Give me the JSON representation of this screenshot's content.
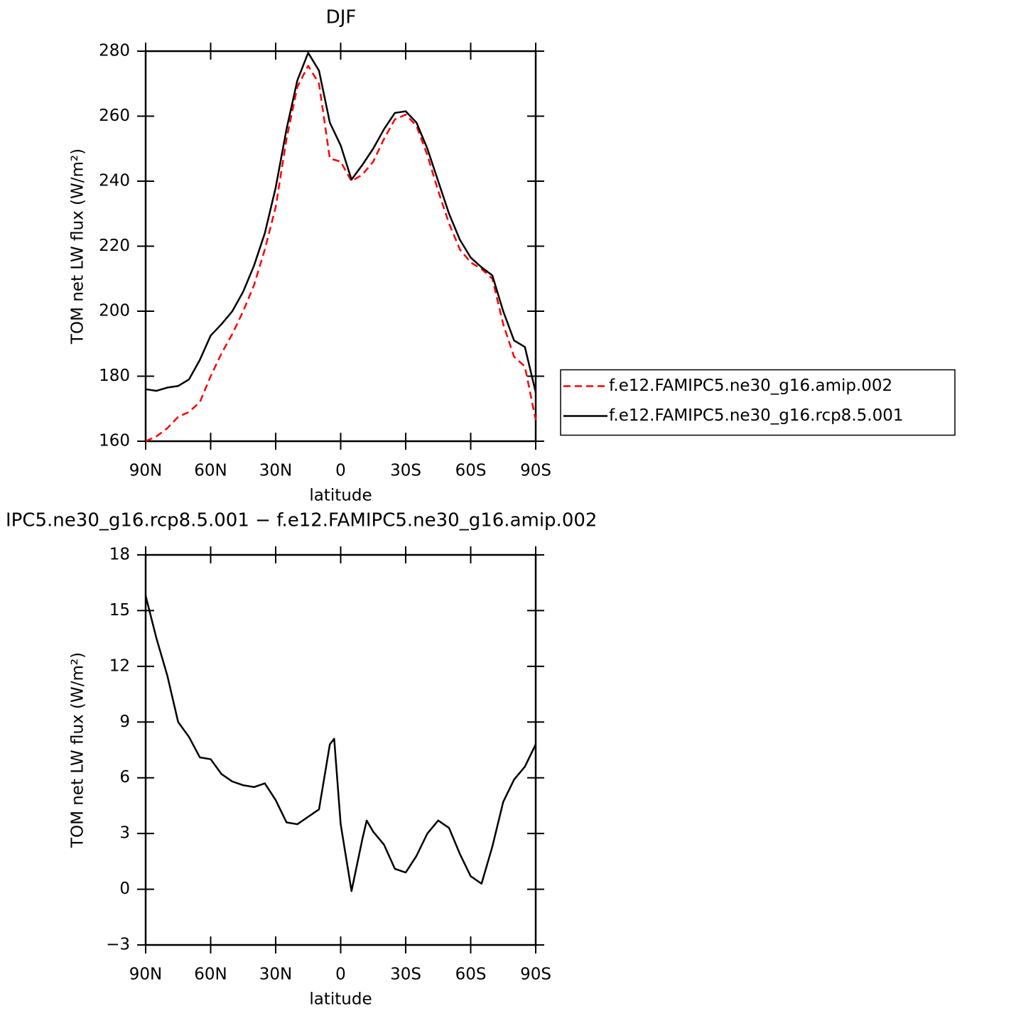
{
  "chart_data": [
    {
      "type": "line",
      "title": "DJF",
      "xlabel": "latitude",
      "ylabel": "TOM net LW flux (W/m²)",
      "x": [
        90,
        85,
        80,
        75,
        70,
        65,
        60,
        55,
        50,
        45,
        40,
        35,
        30,
        25,
        20,
        15,
        10,
        5,
        0,
        -5,
        -10,
        -15,
        -20,
        -25,
        -30,
        -35,
        -40,
        -45,
        -50,
        -55,
        -60,
        -65,
        -70,
        -75,
        -80,
        -85,
        -90
      ],
      "series": [
        {
          "name": "f.e12.FAMIPC5.ne30_g16.amip.002",
          "color": "#ff0000",
          "dash": "dashed",
          "values": [
            160,
            161.5,
            164,
            167.5,
            169,
            172,
            180,
            187,
            193,
            200,
            208,
            219,
            232,
            253,
            269,
            275.5,
            270,
            247,
            246,
            240,
            242,
            246,
            253,
            259,
            260.5,
            257,
            248,
            237,
            227,
            219,
            215,
            213,
            210,
            196,
            186,
            183,
            166.5
          ]
        },
        {
          "name": "f.e12.FAMIPC5.ne30_g16.rcp8.5.001",
          "color": "#000000",
          "dash": "solid",
          "values": [
            176,
            175.5,
            176.5,
            177,
            179,
            185,
            192.5,
            196,
            200,
            206,
            214,
            224,
            238,
            256,
            271,
            279.5,
            274,
            258,
            251,
            240.5,
            245,
            250,
            256,
            261,
            261.5,
            258,
            250,
            240,
            230,
            222,
            216.5,
            213.5,
            211,
            200,
            191,
            189,
            175
          ]
        }
      ],
      "xlim": [
        90,
        -90
      ],
      "xticks": [
        {
          "value": 90,
          "label": "90N"
        },
        {
          "value": 60,
          "label": "60N"
        },
        {
          "value": 30,
          "label": "30N"
        },
        0,
        {
          "value": -30,
          "label": "30S"
        },
        {
          "value": -60,
          "label": "60S"
        },
        {
          "value": -90,
          "label": "90S"
        }
      ],
      "ylim": [
        160,
        280
      ],
      "yticks": [
        160,
        180,
        200,
        220,
        240,
        260,
        280
      ],
      "legend": "right"
    },
    {
      "type": "line",
      "title": "IPC5.ne30_g16.rcp8.5.001 − f.e12.FAMIPC5.ne30_g16.amip.002",
      "xlabel": "latitude",
      "ylabel": "TOM net LW flux (W/m²)",
      "x": [
        90,
        85,
        80,
        75,
        70,
        65,
        60,
        55,
        50,
        45,
        40,
        35,
        30,
        25,
        20,
        15,
        10,
        5,
        3,
        0,
        -5,
        -10,
        -12,
        -15,
        -20,
        -25,
        -30,
        -35,
        -40,
        -45,
        -50,
        -55,
        -60,
        -65,
        -70,
        -75,
        -80,
        -85,
        -90
      ],
      "series": [
        {
          "color": "#000000",
          "dash": "solid",
          "values": [
            15.8,
            13.5,
            11.5,
            9.0,
            8.2,
            7.1,
            7.0,
            6.2,
            5.8,
            5.6,
            5.5,
            5.7,
            4.8,
            3.6,
            3.5,
            3.9,
            4.3,
            7.8,
            8.1,
            3.5,
            -0.1,
            2.7,
            3.7,
            3.1,
            2.4,
            1.1,
            0.9,
            1.8,
            3.0,
            3.7,
            3.3,
            1.9,
            0.7,
            0.3,
            2.3,
            4.7,
            5.9,
            6.6,
            7.8
          ]
        }
      ],
      "xlim": [
        90,
        -90
      ],
      "xticks": [
        {
          "value": 90,
          "label": "90N"
        },
        {
          "value": 60,
          "label": "60N"
        },
        {
          "value": 30,
          "label": "30N"
        },
        0,
        {
          "value": -30,
          "label": "30S"
        },
        {
          "value": -60,
          "label": "60S"
        },
        {
          "value": -90,
          "label": "90S"
        }
      ],
      "ylim": [
        -3,
        18
      ],
      "yticks": [
        {
          "value": -3,
          "label": "−3"
        },
        0,
        3,
        6,
        9,
        12,
        15,
        18
      ]
    }
  ]
}
